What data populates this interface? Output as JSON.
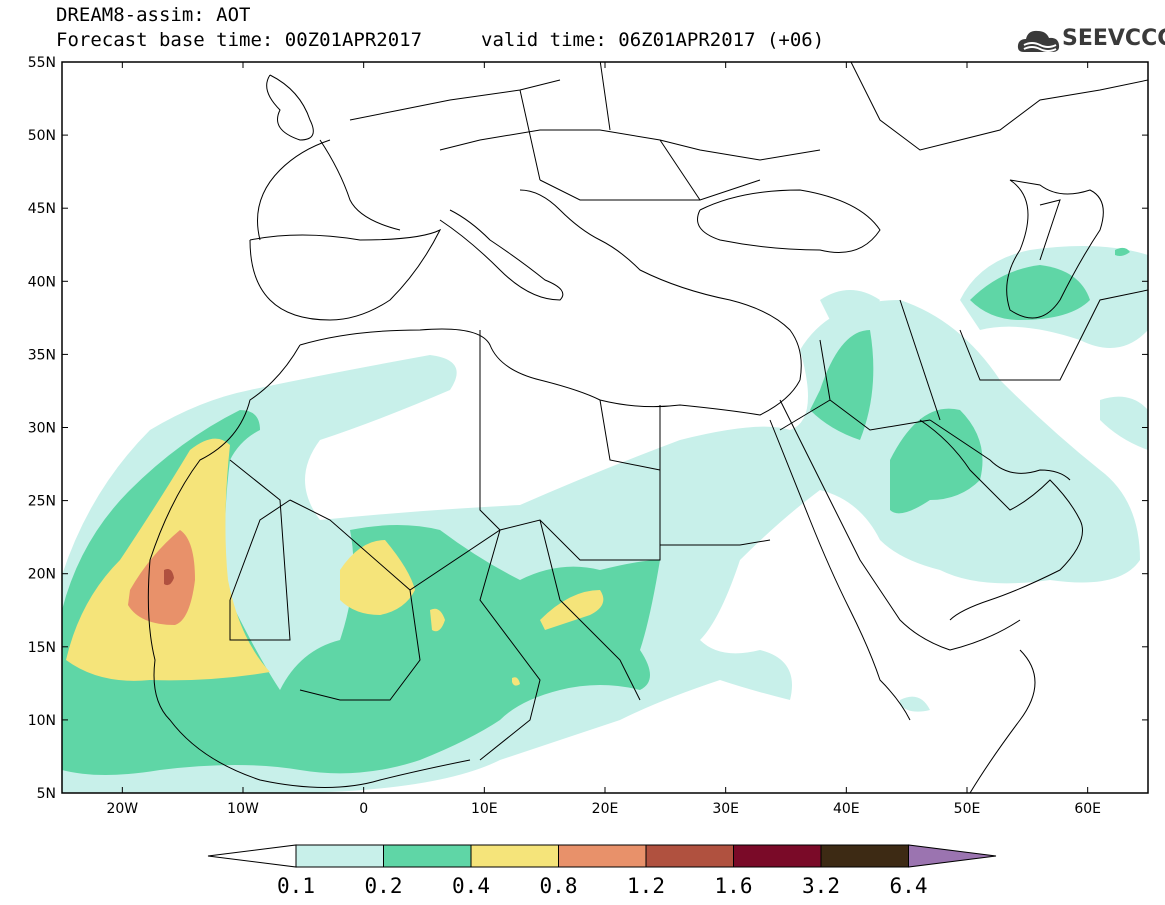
{
  "header": {
    "title_line1": "DREAM8-assim: AOT",
    "title_line2": "Forecast base time: 00Z01APR2017",
    "valid_time": "valid time: 06Z01APR2017 (+06)"
  },
  "logo": {
    "text": "SEEVCCC",
    "icon": "cloud-logo-icon"
  },
  "map": {
    "region": "North Africa, Mediterranean and Middle East",
    "projection": "latitude-longitude",
    "lon_range": [
      -25,
      65
    ],
    "lat_range": [
      5,
      55
    ],
    "lon_ticks": [
      {
        "value": -20,
        "label": "20W"
      },
      {
        "value": -10,
        "label": "10W"
      },
      {
        "value": 0,
        "label": "0"
      },
      {
        "value": 10,
        "label": "10E"
      },
      {
        "value": 20,
        "label": "20E"
      },
      {
        "value": 30,
        "label": "30E"
      },
      {
        "value": 40,
        "label": "40E"
      },
      {
        "value": 50,
        "label": "50E"
      },
      {
        "value": 60,
        "label": "60E"
      }
    ],
    "lat_ticks": [
      {
        "value": 55,
        "label": "55N"
      },
      {
        "value": 50,
        "label": "50N"
      },
      {
        "value": 45,
        "label": "45N"
      },
      {
        "value": 40,
        "label": "40N"
      },
      {
        "value": 35,
        "label": "35N"
      },
      {
        "value": 30,
        "label": "30N"
      },
      {
        "value": 25,
        "label": "25N"
      },
      {
        "value": 20,
        "label": "20N"
      },
      {
        "value": 15,
        "label": "15N"
      },
      {
        "value": 10,
        "label": "10N"
      },
      {
        "value": 5,
        "label": "5N"
      }
    ]
  },
  "colorbar": {
    "levels": [
      "0.1",
      "0.2",
      "0.4",
      "0.8",
      "1.2",
      "1.6",
      "3.2",
      "6.4"
    ],
    "colors": [
      "#ffffff",
      "#c8f0ea",
      "#5fd6a6",
      "#f5e47a",
      "#e8916a",
      "#b0513f",
      "#7a0a28",
      "#3d2a14",
      "#9b74b0"
    ]
  }
}
